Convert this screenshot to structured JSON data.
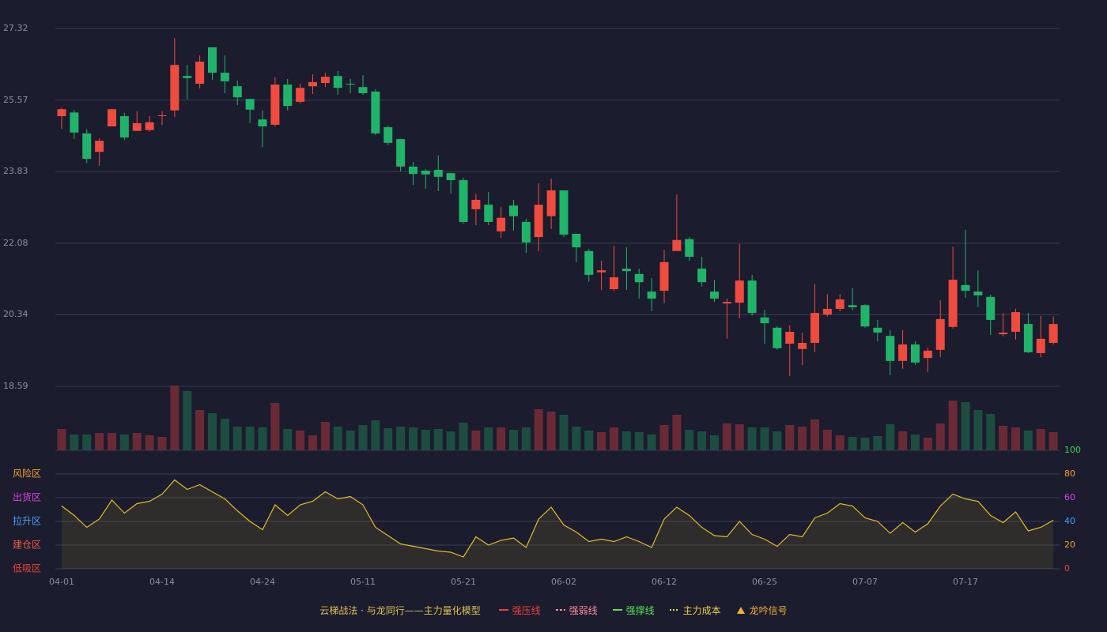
{
  "chart_data": [
    {
      "type": "candlestick",
      "categories": [
        "04-01",
        null,
        null,
        null,
        null,
        null,
        null,
        null,
        "04-14",
        null,
        null,
        null,
        null,
        null,
        null,
        null,
        "04-24",
        null,
        null,
        null,
        null,
        null,
        null,
        null,
        "05-11",
        null,
        null,
        null,
        null,
        null,
        null,
        null,
        "05-21",
        null,
        null,
        null,
        null,
        null,
        null,
        null,
        "06-02",
        null,
        null,
        null,
        null,
        null,
        null,
        null,
        "06-12",
        null,
        null,
        null,
        null,
        null,
        null,
        null,
        "06-25",
        null,
        null,
        null,
        null,
        null,
        null,
        null,
        "07-07",
        null,
        null,
        null,
        null,
        null,
        null,
        null,
        "07-17",
        null,
        null,
        null,
        null,
        null,
        null,
        null
      ],
      "open": [
        25.18,
        25.27,
        24.76,
        24.31,
        24.93,
        25.18,
        24.82,
        24.84,
        25.18,
        25.32,
        26.16,
        25.97,
        26.86,
        26.24,
        25.91,
        25.6,
        25.1,
        24.97,
        25.95,
        25.53,
        25.91,
        25.99,
        26.16,
        25.97,
        25.89,
        25.78,
        24.91,
        24.62,
        23.95,
        23.85,
        23.87,
        23.79,
        23.62,
        22.91,
        23.02,
        22.37,
        23.0,
        22.6,
        22.23,
        22.74,
        23.37,
        22.31,
        21.89,
        21.37,
        20.96,
        21.46,
        21.33,
        20.9,
        20.92,
        21.89,
        22.18,
        21.46,
        20.9,
        20.61,
        20.63,
        21.17,
        20.27,
        20.02,
        19.63,
        19.5,
        19.65,
        20.34,
        20.48,
        20.57,
        20.57,
        20.02,
        19.82,
        19.21,
        19.61,
        19.28,
        19.48,
        20.04,
        21.06,
        20.9,
        20.77,
        19.86,
        19.92,
        20.11,
        19.4,
        19.65
      ],
      "high": [
        25.39,
        25.33,
        24.87,
        24.64,
        25.35,
        25.26,
        25.3,
        25.18,
        25.3,
        27.09,
        26.43,
        26.66,
        26.86,
        26.66,
        26.05,
        25.6,
        25.32,
        26.13,
        26.09,
        25.97,
        26.2,
        26.24,
        26.28,
        26.09,
        26.18,
        25.84,
        24.95,
        24.62,
        24.06,
        23.89,
        24.22,
        23.79,
        23.68,
        23.29,
        23.33,
        22.97,
        23.14,
        22.68,
        23.54,
        23.66,
        23.37,
        22.31,
        21.94,
        21.65,
        22.02,
        21.98,
        21.46,
        21.23,
        21.92,
        23.27,
        22.23,
        21.75,
        21.19,
        20.73,
        22.06,
        21.31,
        20.46,
        20.06,
        20.08,
        19.9,
        21.08,
        20.84,
        20.84,
        20.99,
        20.59,
        20.21,
        19.96,
        19.96,
        19.69,
        19.54,
        20.69,
        22.0,
        22.41,
        21.42,
        20.83,
        20.38,
        20.48,
        20.38,
        20.31,
        20.29
      ],
      "low": [
        24.87,
        24.62,
        24.04,
        23.97,
        24.93,
        24.6,
        24.82,
        24.8,
        24.97,
        25.16,
        25.59,
        25.86,
        26.07,
        25.74,
        25.45,
        25.01,
        24.43,
        24.93,
        25.32,
        25.49,
        25.72,
        25.89,
        25.7,
        25.74,
        25.7,
        24.72,
        24.47,
        23.83,
        23.5,
        23.41,
        23.35,
        23.29,
        22.56,
        22.52,
        22.52,
        22.21,
        22.39,
        21.85,
        21.89,
        22.43,
        22.23,
        21.62,
        21.14,
        20.94,
        20.92,
        20.94,
        20.73,
        20.42,
        20.61,
        21.89,
        21.65,
        21.02,
        20.65,
        19.75,
        20.25,
        20.31,
        19.63,
        19.48,
        18.84,
        19.11,
        19.42,
        20.29,
        20.42,
        20.44,
        20.02,
        19.69,
        18.86,
        19.02,
        19.11,
        18.94,
        19.3,
        20.0,
        20.75,
        20.52,
        19.84,
        19.81,
        19.73,
        19.4,
        19.3,
        19.61
      ],
      "close": [
        25.35,
        24.78,
        24.14,
        24.58,
        25.35,
        24.66,
        25.01,
        25.03,
        25.2,
        26.43,
        26.11,
        26.51,
        26.24,
        26.03,
        25.64,
        25.34,
        24.93,
        25.95,
        25.43,
        25.87,
        26.01,
        26.14,
        25.87,
        25.95,
        25.74,
        24.76,
        24.53,
        23.95,
        23.77,
        23.76,
        23.7,
        23.62,
        22.6,
        23.14,
        22.6,
        22.7,
        22.74,
        22.1,
        23.02,
        23.37,
        22.29,
        21.98,
        21.31,
        21.42,
        21.25,
        21.4,
        21.13,
        20.73,
        21.62,
        22.16,
        21.75,
        21.13,
        20.73,
        20.65,
        21.17,
        20.38,
        20.13,
        19.52,
        19.92,
        19.65,
        20.38,
        20.48,
        20.71,
        20.52,
        20.05,
        19.9,
        19.21,
        19.61,
        19.17,
        19.46,
        20.23,
        21.19,
        20.92,
        20.81,
        20.21,
        19.9,
        20.4,
        19.42,
        19.75,
        20.11
      ],
      "volume": [
        27,
        20,
        20,
        22,
        22,
        20,
        22,
        19,
        17,
        82,
        75,
        51,
        47,
        40,
        30,
        30,
        29,
        60,
        27,
        25,
        19,
        36,
        30,
        25,
        32,
        38,
        28,
        30,
        29,
        26,
        27,
        24,
        35,
        25,
        29,
        29,
        26,
        29,
        52,
        49,
        45,
        30,
        25,
        23,
        29,
        24,
        23,
        20,
        32,
        45,
        26,
        24,
        19,
        34,
        33,
        29,
        29,
        24,
        32,
        30,
        39,
        26,
        19,
        17,
        16,
        18,
        33,
        24,
        20,
        16,
        34,
        63,
        61,
        51,
        46,
        31,
        29,
        25,
        27,
        23
      ],
      "ylim": [
        18.59,
        27.32
      ],
      "yticks": [
        18.59,
        20.34,
        22.08,
        23.83,
        25.57,
        27.32
      ],
      "up_color": "#ef4b3f",
      "down_color": "#20b46b",
      "volume_up_color": "#6a2a35",
      "volume_down_color": "#1d4d40",
      "grid": true
    },
    {
      "type": "area",
      "values": [
        53,
        45,
        35,
        42,
        58,
        47,
        55,
        57,
        63,
        75,
        67,
        71,
        65,
        59,
        49,
        40,
        33,
        54,
        45,
        54,
        57,
        65,
        59,
        61,
        54,
        35,
        28,
        21,
        19,
        17,
        15,
        14,
        10,
        27,
        20,
        24,
        26,
        18,
        42,
        52,
        37,
        31,
        23,
        25,
        23,
        27,
        23,
        18,
        42,
        52,
        45,
        35,
        28,
        27,
        40,
        29,
        25,
        19,
        29,
        27,
        43,
        47,
        55,
        53,
        43,
        40,
        30,
        39,
        31,
        38,
        53,
        63,
        59,
        57,
        45,
        39,
        48,
        32,
        35,
        41
      ],
      "color": "#e2bb2a",
      "ylim": [
        0,
        100
      ],
      "yticks": [
        0,
        20,
        40,
        60,
        80,
        100
      ],
      "ytick_colors": [
        "#f0413f",
        "#f0a030",
        "#4b9bff",
        "#e040e8",
        "#f0a030",
        "#3ed35a"
      ],
      "zones": [
        "低吸区",
        "建仓区",
        "拉升区",
        "出货区",
        "风险区"
      ],
      "zone_colors": [
        "#f0413f",
        "#f05a4a",
        "#4b9bff",
        "#e040e8",
        "#f0a030"
      ],
      "grid": true
    }
  ],
  "legend": {
    "title": "云梯战法 · 与龙同行——主力量化模型",
    "items": [
      {
        "name": "强压线",
        "color": "#f0413f",
        "style": "solid"
      },
      {
        "name": "强弱线",
        "color": "#ff8a9a",
        "style": "dashed"
      },
      {
        "name": "强撑线",
        "color": "#55e055",
        "style": "solid"
      },
      {
        "name": "主力成本",
        "color": "#f0d040",
        "style": "dotted"
      },
      {
        "name": "龙吟信号",
        "color": "#f0b030",
        "style": "triangle"
      }
    ]
  }
}
